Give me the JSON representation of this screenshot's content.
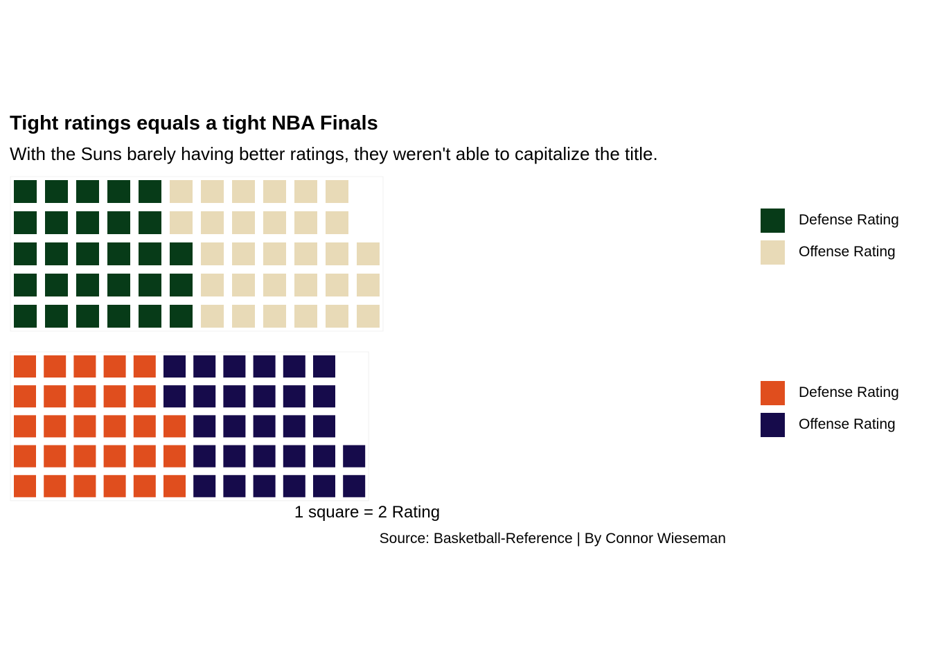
{
  "title": "Tight ratings equals a tight NBA Finals",
  "subtitle": "With the Suns barely having better ratings, they weren't able to capitalize the title.",
  "x_label": "1 square = 2 Rating",
  "caption": "Source: Basketball-Reference | By Connor Wieseman",
  "chart_data": [
    {
      "type": "waffle",
      "rows": 5,
      "unit": "1 square = 2 Rating",
      "categories": [
        "Defense Rating",
        "Offense Rating"
      ],
      "values": [
        56,
        59
      ],
      "colors": [
        "#073B18",
        "#E8DAB7"
      ],
      "legend": "right"
    },
    {
      "type": "waffle",
      "rows": 5,
      "unit": "1 square = 2 Rating",
      "categories": [
        "Defense Rating",
        "Offense Rating"
      ],
      "values": [
        56,
        58
      ],
      "colors": [
        "#E04E1E",
        "#160B4B"
      ],
      "legend": "right"
    }
  ]
}
